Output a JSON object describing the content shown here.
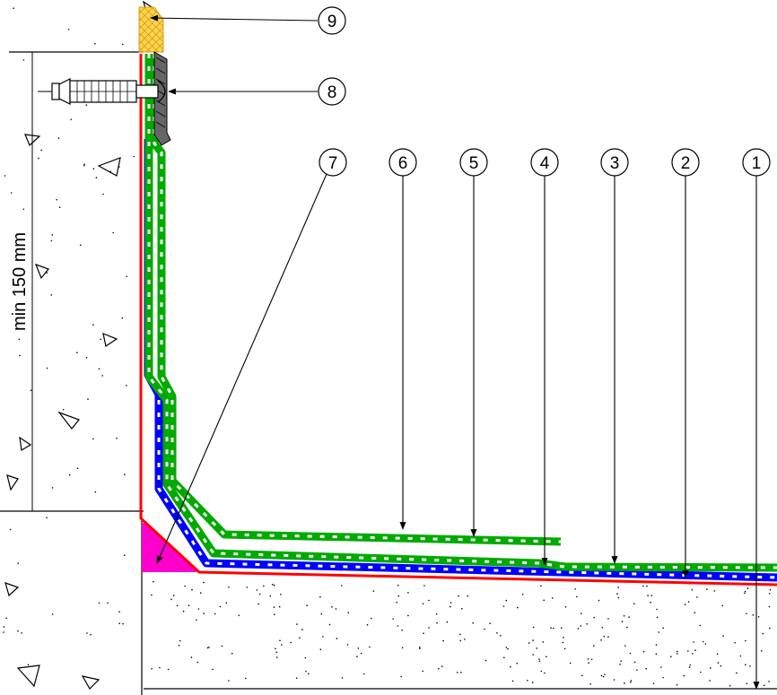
{
  "dimension": {
    "label": "min 150 mm"
  },
  "callouts": [
    {
      "id": "c1",
      "label": "1"
    },
    {
      "id": "c2",
      "label": "2"
    },
    {
      "id": "c3",
      "label": "3"
    },
    {
      "id": "c4",
      "label": "4"
    },
    {
      "id": "c5",
      "label": "5"
    },
    {
      "id": "c6",
      "label": "6"
    },
    {
      "id": "c7",
      "label": "7"
    },
    {
      "id": "c8",
      "label": "8"
    },
    {
      "id": "c9",
      "label": "9"
    }
  ],
  "colors": {
    "red_layer": "#ff0000",
    "blue_layer": "#0000ff",
    "green_layer": "#00aa00",
    "fillet": "#ff00cc",
    "sealant": "#ffcc33",
    "line": "#000000"
  }
}
